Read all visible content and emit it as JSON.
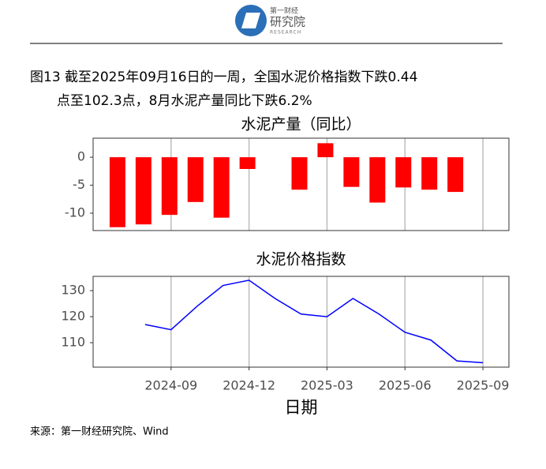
{
  "header": {
    "logo_small": "第一财经",
    "logo_main": "研究院",
    "logo_en": "RESEARCH"
  },
  "caption": [
    "图13  截至2025年09月16日的一周，全国水泥价格指数下跌0.44",
    "点至102.3点，8月水泥产量同比下跌6.2%"
  ],
  "chart_data": [
    {
      "type": "bar",
      "title": "水泥产量（同比）",
      "categories": [
        "2024-07",
        "2024-08",
        "2024-09",
        "2024-10",
        "2024-11",
        "2024-12",
        "2025-01",
        "2025-02",
        "2025-03",
        "2025-04",
        "2025-05",
        "2025-06",
        "2025-07",
        "2025-08"
      ],
      "values": [
        -12.5,
        -12,
        -10.3,
        -8,
        -10.8,
        -2.1,
        null,
        -5.8,
        2.5,
        -5.3,
        -8.1,
        -5.4,
        -5.8,
        -6.2
      ],
      "color": "#ff0000",
      "xlim": [
        "2024-06",
        "2025-10"
      ],
      "ylim": [
        -13.1,
        3.4
      ],
      "yticks": [
        -10,
        -5,
        0
      ],
      "grid": true
    },
    {
      "type": "line",
      "title": "水泥价格指数",
      "x": [
        "2024-08",
        "2024-09",
        "2024-10",
        "2024-11",
        "2024-12",
        "2025-01",
        "2025-02",
        "2025-03",
        "2025-04",
        "2025-05",
        "2025-06",
        "2025-07",
        "2025-08",
        "2025-09"
      ],
      "values": [
        117,
        115,
        124,
        132,
        134,
        127,
        121,
        120,
        127,
        121,
        114,
        111,
        103,
        102.3
      ],
      "color": "#0000ff",
      "xlim": [
        "2024-06",
        "2025-10"
      ],
      "ylim": [
        100.6,
        135.5
      ],
      "yticks": [
        110,
        120,
        130
      ],
      "xticks": [
        "2024-09",
        "2024-12",
        "2025-03",
        "2025-06",
        "2025-09"
      ],
      "xlabel": "日期",
      "grid": true
    }
  ],
  "source": "来源：第一财经研究院、Wind"
}
